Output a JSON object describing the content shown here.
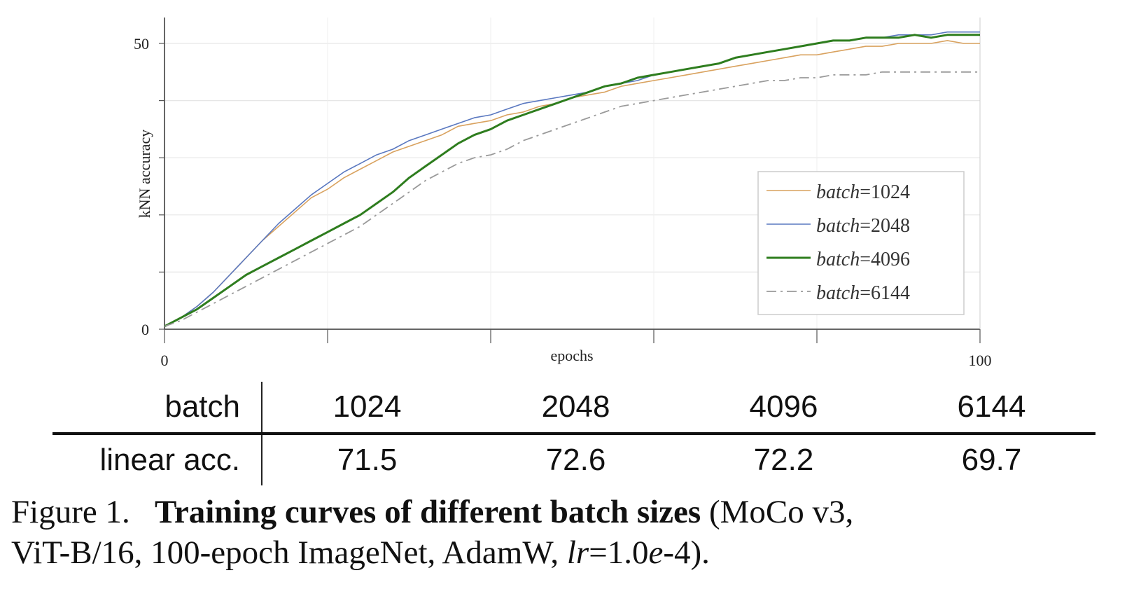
{
  "chart_data": {
    "type": "line",
    "title": "",
    "xlabel": "epochs",
    "ylabel": "kNN accuracy",
    "xlim": [
      0,
      100
    ],
    "ylim": [
      0,
      50
    ],
    "x_ticks": [
      0,
      20,
      40,
      60,
      80,
      100
    ],
    "x_tick_labels": [
      "0",
      "",
      "",
      "",
      "",
      "100"
    ],
    "y_ticks": [
      0,
      10,
      20,
      30,
      40,
      50
    ],
    "y_tick_labels": [
      "0",
      "",
      "",
      "",
      "",
      "50"
    ],
    "grid": true,
    "legend_position": "lower-right",
    "x": [
      0,
      2,
      4,
      6,
      8,
      10,
      12,
      14,
      16,
      18,
      20,
      22,
      24,
      26,
      28,
      30,
      32,
      34,
      36,
      38,
      40,
      42,
      44,
      46,
      48,
      50,
      52,
      54,
      56,
      58,
      60,
      62,
      64,
      66,
      68,
      70,
      72,
      74,
      76,
      78,
      80,
      82,
      84,
      86,
      88,
      90,
      92,
      94,
      96,
      98,
      100
    ],
    "series": [
      {
        "name": "batch=1024",
        "color": "#d9a25f",
        "style": "solid",
        "values": [
          0.5,
          2,
          4,
          6.5,
          9.5,
          12.5,
          15.5,
          18,
          20.5,
          23,
          24.5,
          26.5,
          28,
          29.5,
          31,
          32,
          33,
          34,
          35.5,
          36,
          36.5,
          37.5,
          38,
          39,
          39.5,
          40.5,
          41,
          41.5,
          42.5,
          43,
          43.5,
          44,
          44.5,
          45,
          45.5,
          46,
          46.5,
          47,
          47.5,
          48,
          48,
          48.5,
          49,
          49.5,
          49.5,
          50,
          50,
          50,
          50.5,
          50,
          50
        ]
      },
      {
        "name": "batch=2048",
        "color": "#5a78c0",
        "style": "solid",
        "values": [
          0.5,
          2,
          4,
          6.5,
          9.5,
          12.5,
          15.5,
          18.5,
          21,
          23.5,
          25.5,
          27.5,
          29,
          30.5,
          31.5,
          33,
          34,
          35,
          36,
          37,
          37.5,
          38.5,
          39.5,
          40,
          40.5,
          41,
          41.5,
          42.5,
          43,
          43.5,
          44.5,
          45,
          45.5,
          46,
          46.5,
          47.5,
          48,
          48.5,
          49,
          49.5,
          50,
          50.5,
          50.5,
          51,
          51,
          51.5,
          51.5,
          51.5,
          52,
          52,
          52
        ]
      },
      {
        "name": "batch=4096",
        "color": "#2e7d1e",
        "style": "solid-thick",
        "values": [
          0.5,
          2,
          3.5,
          5.5,
          7.5,
          9.5,
          11,
          12.5,
          14,
          15.5,
          17,
          18.5,
          20,
          22,
          24,
          26.5,
          28.5,
          30.5,
          32.5,
          34,
          35,
          36.5,
          37.5,
          38.5,
          39.5,
          40.5,
          41.5,
          42.5,
          43,
          44,
          44.5,
          45,
          45.5,
          46,
          46.5,
          47.5,
          48,
          48.5,
          49,
          49.5,
          50,
          50.5,
          50.5,
          51,
          51,
          51,
          51.5,
          51,
          51.5,
          51.5,
          51.5
        ]
      },
      {
        "name": "batch=6144",
        "color": "#9a9a9a",
        "style": "dashdot",
        "values": [
          0.5,
          1.5,
          3,
          4.5,
          6,
          7.5,
          9,
          10.5,
          12,
          13.5,
          15,
          16.5,
          18,
          20,
          22,
          24,
          26,
          27.5,
          29,
          30,
          30.5,
          31.5,
          33,
          34,
          35,
          36,
          37,
          38,
          39,
          39.5,
          40,
          40.5,
          41,
          41.5,
          42,
          42.5,
          43,
          43.5,
          43.5,
          44,
          44,
          44.5,
          44.5,
          44.5,
          45,
          45,
          45,
          45,
          45,
          45,
          45
        ]
      }
    ]
  },
  "legend": {
    "prefix": "batch",
    "entries": [
      "=1024",
      "=2048",
      "=4096",
      "=6144"
    ]
  },
  "table": {
    "header_label": "batch",
    "row_label": "linear acc.",
    "columns": [
      "1024",
      "2048",
      "4096",
      "6144"
    ],
    "values": [
      "71.5",
      "72.6",
      "72.2",
      "69.7"
    ]
  },
  "caption": {
    "figure_label": "Figure 1.",
    "bold_title": "Training curves of different batch sizes",
    "line1_rest": "(MoCo v3,",
    "line2_pre": "ViT-B/16, 100-epoch ImageNet, AdamW,",
    "lr_symbol": "lr",
    "lr_value": "=1.0",
    "lr_exp_symbol": "e",
    "lr_exp_value": "-4)."
  }
}
